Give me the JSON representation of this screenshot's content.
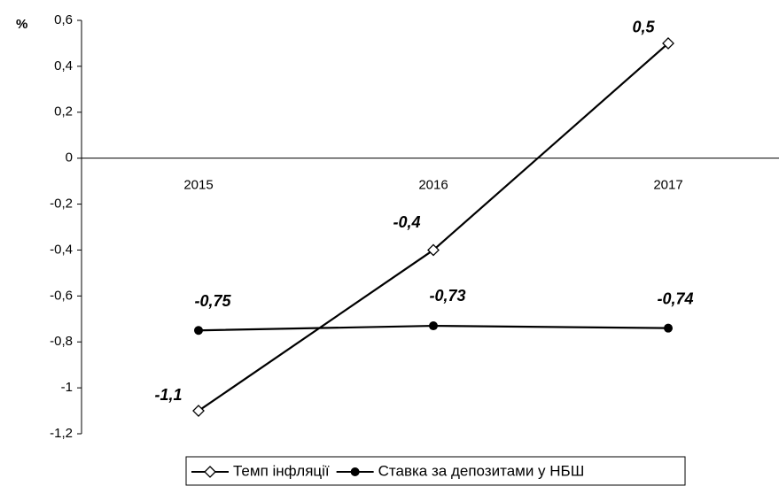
{
  "chart_data": {
    "type": "line",
    "y_label": "%",
    "categories": [
      "2015",
      "2016",
      "2017"
    ],
    "series": [
      {
        "name": "Темп інфляції",
        "color": "#000000",
        "marker": "diamond-open",
        "values": [
          -1.1,
          -0.4,
          0.5
        ],
        "value_labels": [
          "-1,1",
          "-0,4",
          "0,5"
        ]
      },
      {
        "name": "Ставка за депозитами у НБШ",
        "color": "#000000",
        "marker": "circle-filled",
        "values": [
          -0.75,
          -0.73,
          -0.74
        ],
        "value_labels": [
          "-0,75",
          "-0,73",
          "-0,74"
        ]
      }
    ],
    "ylim": [
      -1.2,
      0.6
    ],
    "yticks": [
      {
        "value": -1.2,
        "label": "-1,2"
      },
      -1,
      {
        "value": -0.8,
        "label": "-0,8"
      },
      {
        "value": -0.6,
        "label": "-0,6"
      },
      {
        "value": -0.4,
        "label": "-0,4"
      },
      {
        "value": -0.2,
        "label": "-0,2"
      },
      0,
      {
        "value": 0.2,
        "label": "0,2"
      },
      {
        "value": 0.4,
        "label": "0,4"
      },
      {
        "value": 0.6,
        "label": "0,6"
      }
    ],
    "legend": "bottom"
  }
}
